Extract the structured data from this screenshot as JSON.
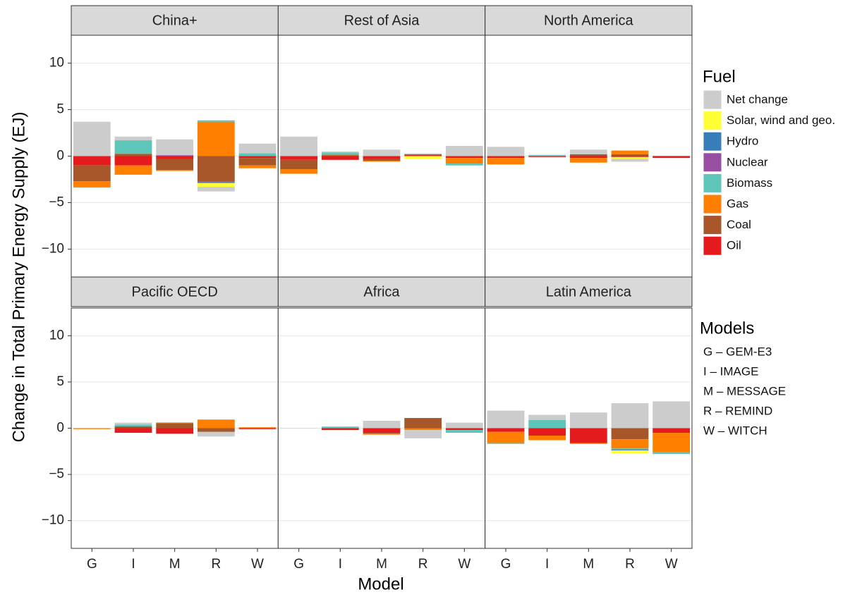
{
  "chart_data": {
    "type": "bar",
    "stacked": true,
    "x_label": "Model",
    "y_label": "Change in Total Primary Energy Supply (EJ)",
    "categories": [
      "G",
      "I",
      "M",
      "R",
      "W"
    ],
    "facets": [
      "China+",
      "Rest of Asia",
      "North America",
      "Pacific OECD",
      "Africa",
      "Latin America"
    ],
    "ylim": [
      -13,
      13
    ],
    "yticks": [
      {
        "value": -10,
        "label": "−10"
      },
      {
        "value": -5,
        "label": "−5"
      },
      0,
      5,
      10
    ],
    "grid": true,
    "legend_title": "Fuel",
    "legend_position": "right",
    "series": [
      {
        "name": "Net change",
        "color": "#cccccc",
        "values": [
          [
            3.7,
            0.4,
            1.7,
            -0.5,
            1.05
          ],
          [
            2.1,
            0.1,
            0.7,
            0.1,
            1.1
          ],
          [
            1.0,
            0.05,
            0.5,
            -0.3,
            0.05
          ],
          [
            0,
            0.2,
            0.05,
            -0.5,
            0
          ],
          [
            -0.05,
            0.05,
            0.8,
            -0.9,
            0.6
          ],
          [
            1.9,
            0.55,
            1.7,
            2.7,
            2.9
          ]
        ]
      },
      {
        "name": "Solar, wind and geo.",
        "color": "#ffff33",
        "values": [
          [
            0,
            0,
            0,
            -0.4,
            0
          ],
          [
            0,
            0,
            0,
            -0.3,
            0
          ],
          [
            0,
            0,
            0,
            -0.2,
            0
          ],
          [
            0,
            0,
            0,
            0,
            0
          ],
          [
            0,
            0,
            0,
            0,
            0
          ],
          [
            0,
            0,
            0,
            -0.3,
            0
          ]
        ]
      },
      {
        "name": "Hydro",
        "color": "#377eb8",
        "values": [
          [
            0,
            0,
            0,
            -0.1,
            0
          ],
          [
            0,
            0,
            0,
            0,
            0
          ],
          [
            0,
            0,
            0,
            0,
            0
          ],
          [
            0,
            0,
            0,
            0,
            0
          ],
          [
            0,
            0,
            0,
            0,
            0
          ],
          [
            0,
            0,
            0,
            -0.1,
            0
          ]
        ]
      },
      {
        "name": "Nuclear",
        "color": "#984ea3",
        "values": [
          [
            0,
            0,
            0.1,
            -0.1,
            0
          ],
          [
            0,
            0,
            0,
            0,
            0
          ],
          [
            0,
            0,
            0,
            0,
            0
          ],
          [
            0,
            0,
            0,
            0,
            0
          ],
          [
            0,
            0,
            0,
            0,
            0
          ],
          [
            0,
            0,
            0,
            0,
            0
          ]
        ]
      },
      {
        "name": "Biomass",
        "color": "#5ec5b9",
        "values": [
          [
            -0.1,
            1.45,
            0,
            0.15,
            0.3
          ],
          [
            0,
            0.2,
            0,
            0,
            -0.2
          ],
          [
            0,
            0.1,
            0,
            0,
            0
          ],
          [
            0,
            0.2,
            0,
            0.05,
            0
          ],
          [
            0,
            0.15,
            0,
            0,
            -0.3
          ],
          [
            -0.1,
            0.9,
            0,
            -0.1,
            -0.2
          ]
        ]
      },
      {
        "name": "Gas",
        "color": "#ff7f00",
        "values": [
          [
            -0.6,
            -1.0,
            -0.1,
            3.7,
            -0.3
          ],
          [
            -0.5,
            0.1,
            -0.1,
            0,
            -0.6
          ],
          [
            -0.7,
            0,
            -0.5,
            0.4,
            0
          ],
          [
            -0.1,
            0,
            0.05,
            0.9,
            0.1
          ],
          [
            0,
            0,
            -0.1,
            -0.2,
            0
          ],
          [
            -1.2,
            -0.5,
            -0.1,
            -1.0,
            -2.1
          ]
        ]
      },
      {
        "name": "Coal",
        "color": "#a65628",
        "values": [
          [
            -1.7,
            0.25,
            -1.2,
            -2.7,
            -0.8
          ],
          [
            -1.0,
            0.1,
            -0.2,
            0.1,
            0
          ],
          [
            0,
            0,
            0.2,
            0.2,
            0
          ],
          [
            0,
            0.2,
            0.55,
            -0.4,
            0
          ],
          [
            0,
            0,
            -0.1,
            1.1,
            0
          ],
          [
            0,
            0,
            0,
            -1.2,
            0
          ]
        ]
      },
      {
        "name": "Oil",
        "color": "#e41a1c",
        "values": [
          [
            -1.0,
            -1.0,
            -0.3,
            0,
            -0.2
          ],
          [
            -0.4,
            -0.4,
            -0.3,
            0.1,
            -0.2
          ],
          [
            -0.2,
            -0.1,
            -0.2,
            -0.1,
            -0.2
          ],
          [
            0,
            -0.5,
            -0.6,
            0,
            -0.1
          ],
          [
            0,
            -0.2,
            -0.5,
            0,
            -0.2
          ],
          [
            -0.4,
            -0.8,
            -1.6,
            0,
            -0.5
          ]
        ]
      }
    ],
    "models_legend": {
      "title": "Models",
      "entries": [
        "G – GEM-E3",
        "I – IMAGE",
        "M – MESSAGE",
        "R – REMIND",
        "W – WITCH"
      ]
    }
  }
}
